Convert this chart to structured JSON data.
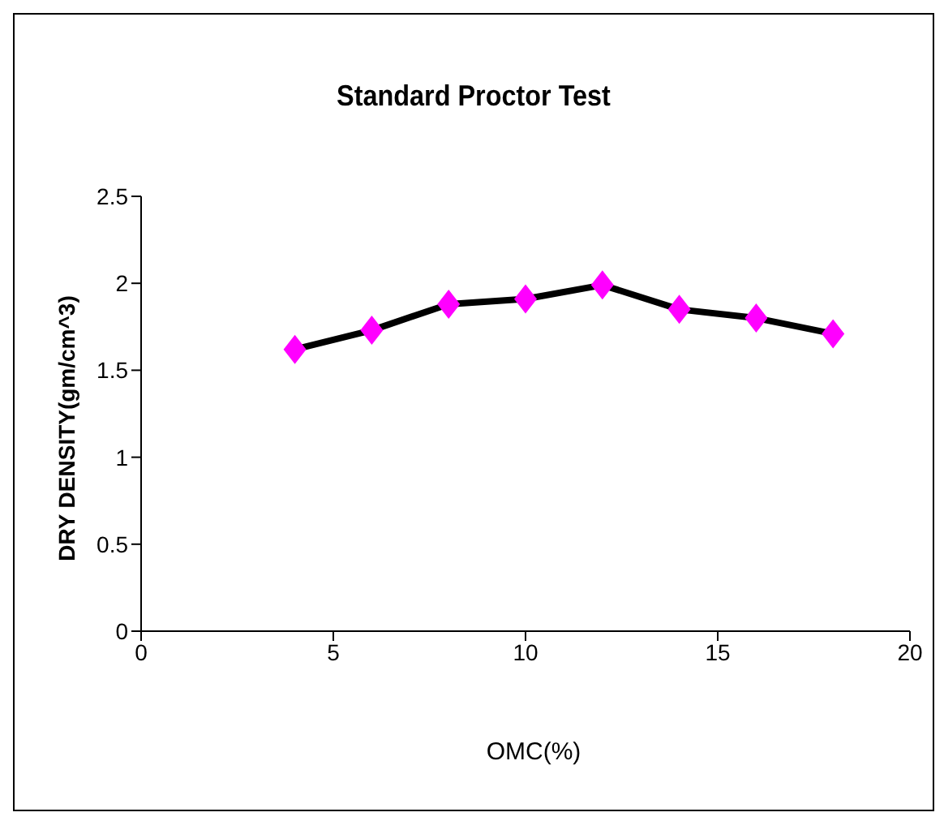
{
  "chart_data": {
    "type": "line",
    "title": "Standard Proctor Test",
    "xlabel": "OMC(%)",
    "ylabel": "DRY DENSITY(gm/cm^3)",
    "x": [
      4,
      6,
      8,
      10,
      12,
      14,
      16,
      18
    ],
    "series": [
      {
        "color": "#000000",
        "colors": [
          "#ff00ff",
          "#ff00ff",
          "#ff00ff",
          "#ff00ff",
          "#ff00ff",
          "#ff00ff",
          "#ff00ff",
          "#ff00ff"
        ],
        "values": [
          1.62,
          1.73,
          1.88,
          1.91,
          1.99,
          1.85,
          1.8,
          1.71
        ]
      }
    ],
    "marker": "diamond",
    "xlim": [
      0,
      20
    ],
    "xticks": [
      0,
      5,
      10,
      15,
      20
    ],
    "ylim": [
      0,
      2.5
    ],
    "yticks": [
      0,
      0.5,
      1,
      1.5,
      2,
      2.5
    ],
    "grid": false
  }
}
